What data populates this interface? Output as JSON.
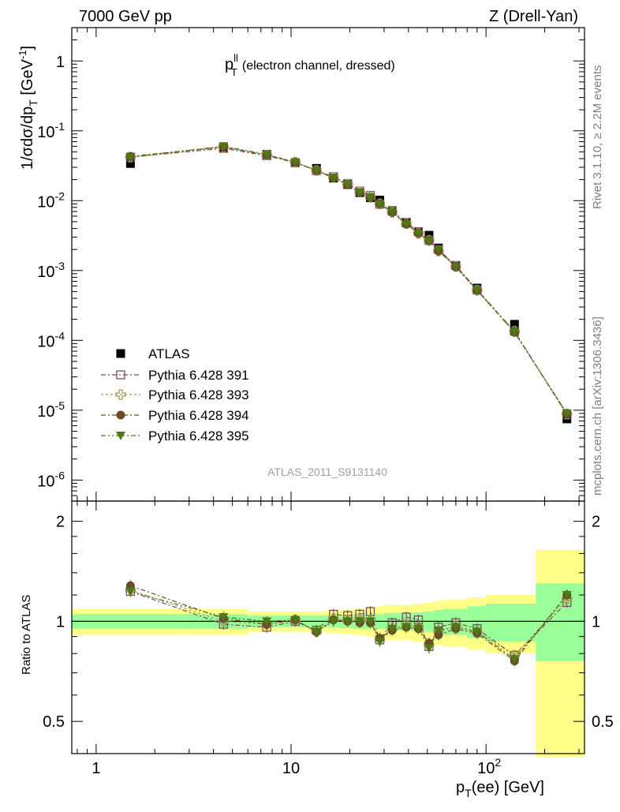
{
  "header": {
    "left": "7000 GeV pp",
    "right": "Z (Drell-Yan)"
  },
  "side": {
    "rivet": "Rivet 3.1.10, ≥ 2.2M events",
    "mcplots": "mcplots.cern.ch [arXiv:1306.3436]"
  },
  "watermark": "ATLAS_2011_S9131140",
  "main_title": {
    "var": "p",
    "sup": "ll",
    "sub": "T",
    "rest": "(electron channel, dressed)"
  },
  "ylabel_top": "1/σdσ/dp_T [GeV^-1]",
  "ylabel_bottom": "Ratio to ATLAS",
  "xlabel": "p_T(ee) [GeV]",
  "legend": [
    "ATLAS",
    "Pythia 6.428 391",
    "Pythia 6.428 393",
    "Pythia 6.428 394",
    "Pythia 6.428 395"
  ],
  "top_ticks": [
    "1",
    "10^-1",
    "10^-2",
    "10^-3",
    "10^-4",
    "10^-5",
    "10^-6"
  ],
  "ratio_ticks": [
    "2",
    "1",
    "0.5"
  ],
  "x_ticks": [
    "1",
    "10",
    "10^2"
  ],
  "colors": {
    "atlas": "#000000",
    "p391": "#7a4a5e",
    "p393": "#a89a5a",
    "p394": "#6b4b2a",
    "p395": "#4d7a12",
    "band_inner": "#99ff99",
    "band_outer": "#ffff88"
  },
  "chart_data": {
    "type": "scatter",
    "x_scale": "log",
    "top_y_scale": "log",
    "ratio_y_scale": "log",
    "xlim": [
      0.75,
      320
    ],
    "top_ylim": [
      5e-07,
      3
    ],
    "ratio_ylim": [
      0.4,
      2.3
    ],
    "x": [
      1.5,
      4.5,
      7.5,
      10.5,
      13.5,
      16.5,
      19.5,
      22.5,
      25.5,
      28.5,
      33,
      39,
      45,
      51,
      57,
      70,
      90,
      140,
      260
    ],
    "series": [
      {
        "name": "ATLAS",
        "marker": "filled-square",
        "values": [
          0.034,
          0.058,
          0.046,
          0.035,
          0.029,
          0.021,
          0.017,
          0.013,
          0.011,
          0.0102,
          0.0072,
          0.0048,
          0.0036,
          0.0032,
          0.0021,
          0.00118,
          0.00056,
          0.00017,
          7.5e-06
        ]
      },
      {
        "name": "Pythia 6.428 391",
        "marker": "open-square",
        "values": [
          0.042,
          0.056,
          0.044,
          0.035,
          0.027,
          0.022,
          0.0175,
          0.0137,
          0.0118,
          0.0089,
          0.0071,
          0.0049,
          0.0036,
          0.0027,
          0.002,
          0.00118,
          0.00053,
          0.000135,
          8.6e-06
        ]
      },
      {
        "name": "Pythia 6.428 393",
        "marker": "open-cross",
        "values": [
          0.042,
          0.058,
          0.045,
          0.0355,
          0.027,
          0.0215,
          0.0172,
          0.0133,
          0.0112,
          0.009,
          0.0068,
          0.0047,
          0.0034,
          0.0027,
          0.0019,
          0.00114,
          0.00052,
          0.000135,
          8.8e-06
        ]
      },
      {
        "name": "Pythia 6.428 394",
        "marker": "filled-circle",
        "values": [
          0.043,
          0.059,
          0.045,
          0.0355,
          0.027,
          0.021,
          0.017,
          0.013,
          0.011,
          0.009,
          0.0068,
          0.0046,
          0.0034,
          0.0027,
          0.0019,
          0.00112,
          0.00052,
          0.00013,
          9e-06
        ]
      },
      {
        "name": "Pythia 6.428 395",
        "marker": "filled-triangle-down",
        "values": [
          0.042,
          0.06,
          0.046,
          0.0355,
          0.027,
          0.021,
          0.017,
          0.013,
          0.011,
          0.0088,
          0.0069,
          0.0046,
          0.0034,
          0.0026,
          0.002,
          0.00113,
          0.00052,
          0.00013,
          9e-06
        ]
      }
    ],
    "ratio_series": [
      {
        "name": "Pythia 6.428 391",
        "values": [
          1.23,
          0.98,
          0.96,
          1.0,
          0.94,
          1.05,
          1.04,
          1.05,
          1.07,
          0.88,
          0.99,
          1.03,
          1.01,
          0.84,
          0.96,
          0.99,
          0.95,
          0.79,
          1.14
        ]
      },
      {
        "name": "Pythia 6.428 393",
        "values": [
          1.24,
          1.0,
          0.98,
          1.01,
          0.93,
          1.02,
          1.01,
          1.02,
          1.01,
          0.88,
          0.95,
          0.98,
          0.96,
          0.85,
          0.93,
          0.97,
          0.93,
          0.79,
          1.17
        ]
      },
      {
        "name": "Pythia 6.428 394",
        "values": [
          1.28,
          1.02,
          0.98,
          1.01,
          0.93,
          1.01,
          1.0,
          0.99,
          0.99,
          0.89,
          0.94,
          0.96,
          0.95,
          0.86,
          0.91,
          0.95,
          0.92,
          0.76,
          1.2
        ]
      },
      {
        "name": "Pythia 6.428 395",
        "values": [
          1.23,
          1.03,
          1.0,
          1.01,
          0.93,
          1.0,
          1.0,
          1.0,
          1.0,
          0.87,
          0.95,
          0.96,
          0.95,
          0.83,
          0.94,
          0.96,
          0.93,
          0.77,
          1.2
        ]
      }
    ],
    "uncertainty_bands": {
      "edges": [
        0.75,
        3.0,
        6.0,
        9.0,
        12.0,
        15.0,
        18.0,
        21.0,
        24.0,
        27.0,
        30.0,
        36.0,
        42.0,
        48.0,
        54.0,
        60.0,
        80.0,
        100.0,
        180.0,
        320.0
      ],
      "inner_lo": [
        0.95,
        0.95,
        0.96,
        0.96,
        0.96,
        0.96,
        0.955,
        0.95,
        0.95,
        0.95,
        0.94,
        0.94,
        0.935,
        0.93,
        0.92,
        0.91,
        0.89,
        0.87,
        0.76
      ],
      "inner_hi": [
        1.05,
        1.05,
        1.04,
        1.04,
        1.04,
        1.04,
        1.045,
        1.05,
        1.05,
        1.05,
        1.06,
        1.06,
        1.065,
        1.07,
        1.08,
        1.09,
        1.11,
        1.13,
        1.3
      ],
      "outer_lo": [
        0.91,
        0.91,
        0.93,
        0.93,
        0.93,
        0.92,
        0.915,
        0.91,
        0.9,
        0.89,
        0.88,
        0.88,
        0.87,
        0.86,
        0.85,
        0.84,
        0.82,
        0.8,
        0.39
      ],
      "outer_hi": [
        1.09,
        1.09,
        1.07,
        1.07,
        1.07,
        1.08,
        1.085,
        1.09,
        1.1,
        1.11,
        1.12,
        1.12,
        1.13,
        1.14,
        1.15,
        1.16,
        1.18,
        1.2,
        1.64
      ]
    },
    "reference_line": 1,
    "legend_position": "lower-left"
  }
}
